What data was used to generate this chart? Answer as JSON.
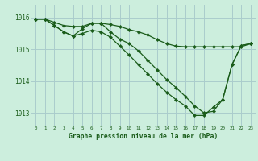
{
  "title": "Graphe pression niveau de la mer (hPa)",
  "bg_color": "#cceedd",
  "grid_color": "#aacccc",
  "line_color": "#1a5c1a",
  "xlim": [
    -0.5,
    23.5
  ],
  "ylim": [
    1012.6,
    1016.4
  ],
  "yticks": [
    1013,
    1014,
    1015,
    1016
  ],
  "xticks": [
    0,
    1,
    2,
    3,
    4,
    5,
    6,
    7,
    8,
    9,
    10,
    11,
    12,
    13,
    14,
    15,
    16,
    17,
    18,
    19,
    20,
    21,
    22,
    23
  ],
  "line1_x": [
    0,
    1,
    2,
    3,
    4,
    5,
    6,
    7,
    8,
    9,
    10,
    11,
    12,
    13,
    14,
    15,
    16,
    17,
    18,
    19,
    20,
    21,
    22,
    23
  ],
  "line1_y": [
    1015.95,
    1015.95,
    1015.85,
    1015.75,
    1015.72,
    1015.72,
    1015.82,
    1015.82,
    1015.78,
    1015.72,
    1015.62,
    1015.55,
    1015.45,
    1015.3,
    1015.18,
    1015.1,
    1015.08,
    1015.08,
    1015.08,
    1015.08,
    1015.08,
    1015.08,
    1015.08,
    1015.18
  ],
  "line2_x": [
    0,
    1,
    2,
    3,
    4,
    5,
    6,
    7,
    8,
    9,
    10,
    11,
    12,
    13,
    14,
    15,
    16,
    17,
    18,
    19,
    20,
    21,
    22,
    23
  ],
  "line2_y": [
    1015.95,
    1015.95,
    1015.75,
    1015.55,
    1015.42,
    1015.65,
    1015.82,
    1015.82,
    1015.55,
    1015.32,
    1015.18,
    1014.95,
    1014.65,
    1014.35,
    1014.05,
    1013.8,
    1013.52,
    1013.22,
    1013.0,
    1013.05,
    1013.42,
    1014.52,
    1015.12,
    1015.18
  ],
  "line3_x": [
    0,
    1,
    2,
    3,
    4,
    5,
    6,
    7,
    8,
    9,
    10,
    11,
    12,
    13,
    14,
    15,
    16,
    17,
    18,
    19,
    20,
    21,
    22,
    23
  ],
  "line3_y": [
    1015.95,
    1015.95,
    1015.75,
    1015.55,
    1015.42,
    1015.5,
    1015.6,
    1015.55,
    1015.38,
    1015.1,
    1014.82,
    1014.52,
    1014.22,
    1013.92,
    1013.65,
    1013.42,
    1013.22,
    1012.92,
    1012.92,
    1013.18,
    1013.42,
    1014.52,
    1015.12,
    1015.18
  ]
}
